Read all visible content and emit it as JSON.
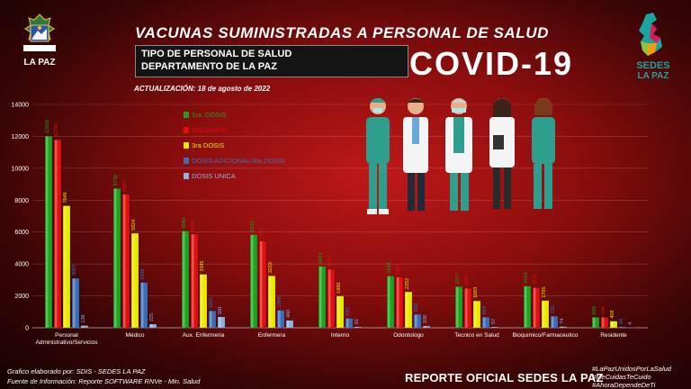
{
  "header": {
    "title": "VACUNAS SUMINISTRADAS A PERSONAL DE SALUD",
    "subtitle_line1": "TIPO DE PERSONAL DE SALUD",
    "subtitle_line2": "DEPARTAMENTO DE LA PAZ",
    "banner": "COVID-19",
    "update": "ACTUALIZACIÓN: 18 de agosto de 2022"
  },
  "logos": {
    "left_text": "LA PAZ",
    "right_text_1": "SEDES",
    "right_text_2": "LA PAZ"
  },
  "footer": {
    "source_1": "Grafico elaborado por: SDIS - SEDES LA PAZ",
    "source_2": "Fuente de Información: Reporte SOFTWARE RNVe - Min. Salud",
    "report": "REPORTE OFICIAL SEDES LA PAZ",
    "hashtags": [
      "#LaPazUnidosPorLaSalud",
      "#MeCuidasTeCuido",
      "#AhoraDependeDeTi"
    ]
  },
  "colors": {
    "dose1": "#1fa31f",
    "dose2": "#e01010",
    "dose3": "#e8e800",
    "dose4": "#3a6fb8",
    "single": "#8fb2e0"
  },
  "chart_data": {
    "type": "bar",
    "ylim": [
      0,
      14000
    ],
    "yticks": [
      0,
      2000,
      4000,
      6000,
      8000,
      10000,
      12000,
      14000
    ],
    "grid": true,
    "legend_position": "top-left",
    "categories": [
      [
        "Personal",
        "Administrativo/Servicios"
      ],
      [
        "Médico"
      ],
      [
        "Aux. Enfermeria"
      ],
      [
        "Enfermera"
      ],
      [
        "Interno"
      ],
      [
        "Odontologo"
      ],
      [
        "Tecnico en Salud"
      ],
      [
        "Bioquimico/Farmaceutico"
      ],
      [
        "Residente"
      ]
    ],
    "series": [
      {
        "name": "1ra. DOSIS",
        "values": [
          12016,
          8730,
          6065,
          5832,
          3852,
          3243,
          2577,
          2614,
          656
        ]
      },
      {
        "name": "2da DOSIS",
        "values": [
          11780,
          8367,
          5868,
          5431,
          3656,
          3169,
          2467,
          2512,
          654
        ]
      },
      {
        "name": "3ra DOSIS",
        "values": [
          7646,
          5924,
          3345,
          3253,
          1985,
          2252,
          1683,
          1705,
          408
        ]
      },
      {
        "name": "DOSIS ADICIONAL/4ta DOSIS",
        "values": [
          3097,
          2838,
          1055,
          1096,
          593,
          838,
          664,
          722,
          66
        ]
      },
      {
        "name": "DOSIS UNICA",
        "values": [
          136,
          225,
          681,
          460,
          61,
          109,
          57,
          74,
          4
        ]
      }
    ]
  }
}
